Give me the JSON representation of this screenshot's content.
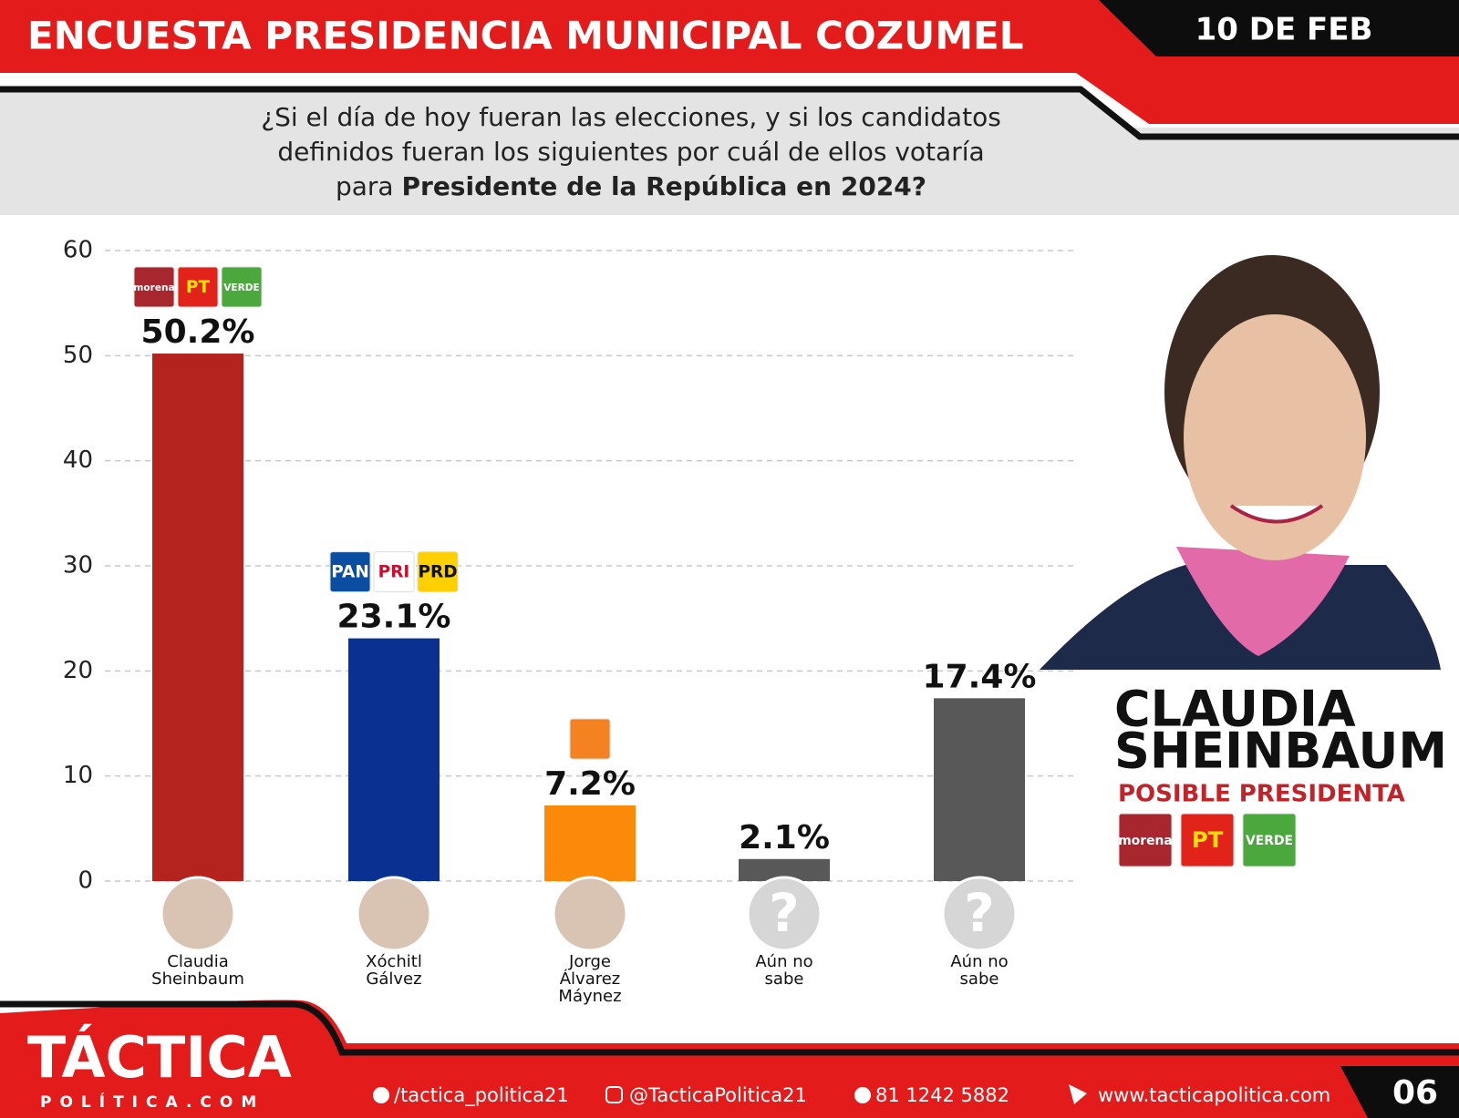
{
  "header": {
    "title": "ENCUESTA PRESIDENCIA MUNICIPAL COZUMEL",
    "date": "10 DE FEB"
  },
  "question": {
    "lines": [
      "¿Si el día de hoy fueran las elecciones, y si los candidatos",
      "definidos fueran los siguientes por cuál de ellos votaría",
      "para "
    ],
    "emphasis": "Presidente de la República en 2024?"
  },
  "chart_data": {
    "type": "bar",
    "categories": [
      "Claudia Sheinbaum",
      "Xóchitl Gálvez",
      "Jorge Álvarez Máynez",
      "Aún no sabe",
      "Aún no sabe"
    ],
    "values": [
      50.2,
      23.1,
      7.2,
      2.1,
      17.4
    ],
    "value_labels": [
      "50.2%",
      "23.1%",
      "7.2%",
      "2.1%",
      "17.4%"
    ],
    "colors": [
      "#b5231f",
      "#0a3192",
      "#fb8a0b",
      "#585858",
      "#585858"
    ],
    "ylim": [
      0,
      60
    ],
    "yticks": [
      0,
      10,
      20,
      30,
      40,
      50,
      60
    ],
    "grid": true,
    "unknown_avatar": "?",
    "parties": [
      [
        {
          "label": "morena",
          "color": "#a8262e",
          "text_color": "#ffffff"
        },
        {
          "label": "PT",
          "color": "#e2231a",
          "text_color": "#ffe200"
        },
        {
          "label": "VERDE",
          "color": "#4ba83c",
          "text_color": "#ffffff"
        }
      ],
      [
        {
          "label": "PAN",
          "color": "#0a4ea1",
          "text_color": "#ffffff"
        },
        {
          "label": "PRI",
          "color": "#ffffff",
          "text_color": "#c8102e"
        },
        {
          "label": "PRD",
          "color": "#ffd000",
          "text_color": "#111111"
        }
      ],
      [
        {
          "color": "#f58220"
        }
      ],
      [],
      []
    ]
  },
  "highlight": {
    "name_lines": [
      "CLAUDIA",
      "SHEINBAUM"
    ],
    "subtitle": "POSIBLE PRESIDENTA",
    "parties": [
      {
        "label": "morena",
        "color": "#a8262e",
        "text_color": "#ffffff"
      },
      {
        "label": "PT",
        "color": "#e2231a",
        "text_color": "#ffe200"
      },
      {
        "label": "VERDE",
        "color": "#4ba83c",
        "text_color": "#ffffff"
      }
    ]
  },
  "footer": {
    "brand": "TÁCTICA",
    "brand_sub": "POLÍTICA.COM",
    "facebook": "/tactica_politica21",
    "instagram": "@TacticaPolitica21",
    "phone": "81 1242 5882",
    "website": "www.tacticapolitica.com",
    "page": "06"
  }
}
